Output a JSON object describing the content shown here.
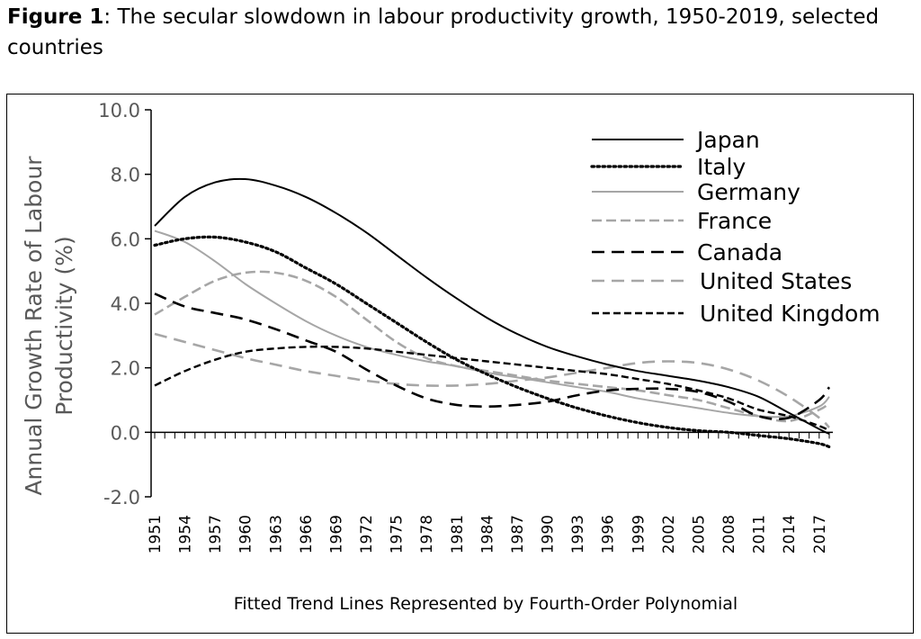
{
  "figure": {
    "label": "Figure 1",
    "caption": ": The secular slowdown in labour productivity growth, 1950-2019, selected countries"
  },
  "chart_data": {
    "type": "line",
    "title": "",
    "xlabel": "Fitted Trend Lines Represented by Fourth-Order Polynomial",
    "ylabel_lines": [
      "Annual Growth Rate of Labour",
      "Productivity  (%)"
    ],
    "ylim": [
      -2.0,
      10.0
    ],
    "yticks": [
      "-2.0",
      "0.0",
      "2.0",
      "4.0",
      "6.0",
      "8.0",
      "10.0"
    ],
    "xlim": [
      1951,
      2018
    ],
    "xticks": [
      "1951",
      "1954",
      "1957",
      "1960",
      "1963",
      "1966",
      "1969",
      "1972",
      "1975",
      "1978",
      "1981",
      "1984",
      "1987",
      "1990",
      "1993",
      "1996",
      "1999",
      "2002",
      "2005",
      "2008",
      "2011",
      "2014",
      "2017"
    ],
    "legend_position": "top-right",
    "grid": false,
    "series": [
      {
        "name": "Japan",
        "color": "#000000",
        "dash": "solid",
        "x": [
          1951,
          1954,
          1957,
          1960,
          1963,
          1966,
          1969,
          1972,
          1975,
          1978,
          1981,
          1984,
          1987,
          1990,
          1993,
          1996,
          1999,
          2002,
          2005,
          2008,
          2011,
          2014,
          2017,
          2018
        ],
        "y": [
          6.4,
          7.3,
          7.75,
          7.85,
          7.65,
          7.3,
          6.8,
          6.2,
          5.5,
          4.8,
          4.15,
          3.55,
          3.05,
          2.65,
          2.35,
          2.1,
          1.9,
          1.75,
          1.6,
          1.4,
          1.1,
          0.6,
          0.1,
          -0.05
        ]
      },
      {
        "name": "Italy",
        "color": "#000000",
        "dash": "dotted",
        "x": [
          1951,
          1954,
          1957,
          1960,
          1963,
          1966,
          1969,
          1972,
          1975,
          1978,
          1981,
          1984,
          1987,
          1990,
          1993,
          1996,
          1999,
          2002,
          2005,
          2008,
          2011,
          2014,
          2017,
          2018
        ],
        "y": [
          5.8,
          6.0,
          6.05,
          5.9,
          5.6,
          5.1,
          4.6,
          4.0,
          3.4,
          2.8,
          2.25,
          1.8,
          1.4,
          1.05,
          0.75,
          0.5,
          0.3,
          0.15,
          0.05,
          0.0,
          -0.1,
          -0.2,
          -0.35,
          -0.45
        ]
      },
      {
        "name": "Germany",
        "color": "#a6a6a6",
        "dash": "solid",
        "x": [
          1951,
          1954,
          1957,
          1960,
          1963,
          1966,
          1969,
          1972,
          1975,
          1978,
          1981,
          1984,
          1987,
          1990,
          1993,
          1996,
          1999,
          2002,
          2005,
          2008,
          2011,
          2014,
          2017,
          2018
        ],
        "y": [
          6.25,
          5.9,
          5.3,
          4.6,
          4.0,
          3.45,
          3.0,
          2.65,
          2.4,
          2.2,
          2.05,
          1.85,
          1.7,
          1.55,
          1.4,
          1.25,
          1.05,
          0.9,
          0.75,
          0.6,
          0.5,
          0.5,
          0.8,
          1.1
        ]
      },
      {
        "name": "France",
        "color": "#a6a6a6",
        "dash": "dashed",
        "x": [
          1951,
          1954,
          1957,
          1960,
          1963,
          1966,
          1969,
          1972,
          1975,
          1978,
          1981,
          1984,
          1987,
          1990,
          1993,
          1996,
          1999,
          2002,
          2005,
          2008,
          2011,
          2014,
          2017,
          2018
        ],
        "y": [
          3.65,
          4.2,
          4.7,
          4.95,
          4.95,
          4.7,
          4.2,
          3.5,
          2.8,
          2.3,
          2.05,
          1.9,
          1.75,
          1.6,
          1.5,
          1.4,
          1.3,
          1.15,
          1.0,
          0.75,
          0.5,
          0.35,
          0.7,
          0.9
        ]
      },
      {
        "name": "Canada",
        "color": "#000000",
        "dash": "longdash",
        "x": [
          1951,
          1954,
          1957,
          1960,
          1963,
          1966,
          1969,
          1972,
          1975,
          1978,
          1981,
          1984,
          1987,
          1990,
          1993,
          1996,
          1999,
          2002,
          2005,
          2008,
          2011,
          2014,
          2017,
          2018
        ],
        "y": [
          4.3,
          3.9,
          3.7,
          3.5,
          3.2,
          2.85,
          2.5,
          1.95,
          1.45,
          1.05,
          0.85,
          0.8,
          0.85,
          0.95,
          1.15,
          1.3,
          1.35,
          1.35,
          1.25,
          0.95,
          0.5,
          0.45,
          1.0,
          1.4
        ]
      },
      {
        "name": "United States",
        "color": "#a6a6a6",
        "dash": "longdash",
        "x": [
          1951,
          1954,
          1957,
          1960,
          1963,
          1966,
          1969,
          1972,
          1975,
          1978,
          1981,
          1984,
          1987,
          1990,
          1993,
          1996,
          1999,
          2002,
          2005,
          2008,
          2011,
          2014,
          2017,
          2018
        ],
        "y": [
          3.05,
          2.8,
          2.55,
          2.3,
          2.1,
          1.9,
          1.75,
          1.6,
          1.5,
          1.45,
          1.45,
          1.5,
          1.6,
          1.7,
          1.85,
          2.0,
          2.15,
          2.2,
          2.15,
          1.95,
          1.6,
          1.1,
          0.45,
          0.15
        ]
      },
      {
        "name": "United Kingdom",
        "color": "#000000",
        "dash": "shortdash",
        "x": [
          1951,
          1954,
          1957,
          1960,
          1963,
          1966,
          1969,
          1972,
          1975,
          1978,
          1981,
          1984,
          1987,
          1990,
          1993,
          1996,
          1999,
          2002,
          2005,
          2008,
          2011,
          2014,
          2017,
          2018
        ],
        "y": [
          1.45,
          1.9,
          2.25,
          2.5,
          2.6,
          2.65,
          2.65,
          2.6,
          2.5,
          2.4,
          2.3,
          2.2,
          2.1,
          2.0,
          1.9,
          1.8,
          1.65,
          1.5,
          1.3,
          1.05,
          0.7,
          0.5,
          0.2,
          0.05
        ]
      }
    ]
  }
}
